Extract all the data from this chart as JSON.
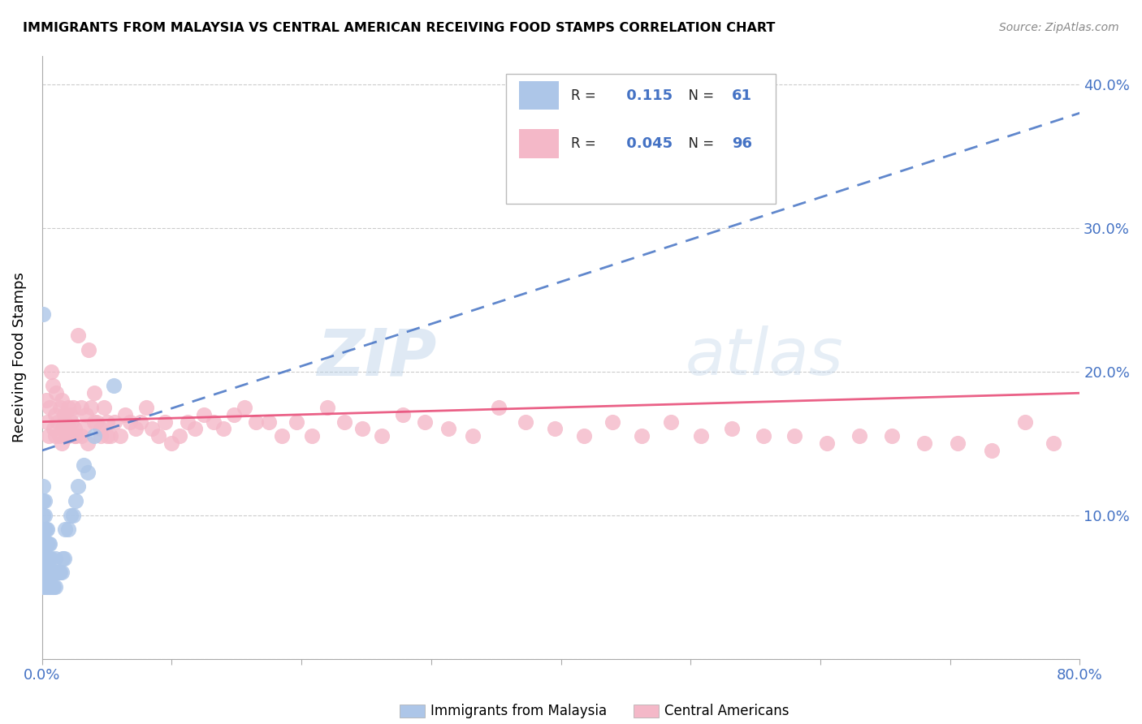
{
  "title": "IMMIGRANTS FROM MALAYSIA VS CENTRAL AMERICAN RECEIVING FOOD STAMPS CORRELATION CHART",
  "source": "Source: ZipAtlas.com",
  "ylabel": "Receiving Food Stamps",
  "xlim": [
    0.0,
    0.8
  ],
  "ylim": [
    0.0,
    0.42
  ],
  "r_malaysia": 0.115,
  "n_malaysia": 61,
  "r_central": 0.045,
  "n_central": 96,
  "legend_label_1": "Immigrants from Malaysia",
  "legend_label_2": "Central Americans",
  "color_malaysia": "#adc6e8",
  "color_central": "#f4b8c8",
  "line_color_malaysia": "#4472c4",
  "line_color_central": "#e8507a",
  "watermark_zip": "ZIP",
  "watermark_atlas": "atlas",
  "malaysia_x": [
    0.001,
    0.001,
    0.001,
    0.001,
    0.001,
    0.001,
    0.001,
    0.001,
    0.002,
    0.002,
    0.002,
    0.002,
    0.002,
    0.002,
    0.002,
    0.003,
    0.003,
    0.003,
    0.003,
    0.003,
    0.004,
    0.004,
    0.004,
    0.004,
    0.004,
    0.005,
    0.005,
    0.005,
    0.005,
    0.006,
    0.006,
    0.006,
    0.006,
    0.007,
    0.007,
    0.007,
    0.008,
    0.008,
    0.009,
    0.009,
    0.01,
    0.01,
    0.01,
    0.011,
    0.012,
    0.013,
    0.014,
    0.015,
    0.016,
    0.017,
    0.018,
    0.02,
    0.022,
    0.024,
    0.026,
    0.028,
    0.032,
    0.035,
    0.04,
    0.055,
    0.001
  ],
  "malaysia_y": [
    0.05,
    0.06,
    0.07,
    0.08,
    0.09,
    0.1,
    0.11,
    0.12,
    0.05,
    0.06,
    0.07,
    0.08,
    0.09,
    0.1,
    0.11,
    0.05,
    0.06,
    0.07,
    0.08,
    0.09,
    0.05,
    0.06,
    0.07,
    0.08,
    0.09,
    0.05,
    0.06,
    0.07,
    0.08,
    0.05,
    0.06,
    0.07,
    0.08,
    0.05,
    0.06,
    0.07,
    0.05,
    0.06,
    0.05,
    0.06,
    0.05,
    0.06,
    0.07,
    0.06,
    0.06,
    0.06,
    0.06,
    0.06,
    0.07,
    0.07,
    0.09,
    0.09,
    0.1,
    0.1,
    0.11,
    0.12,
    0.135,
    0.13,
    0.155,
    0.19,
    0.24
  ],
  "central_x": [
    0.003,
    0.004,
    0.005,
    0.006,
    0.007,
    0.008,
    0.009,
    0.01,
    0.011,
    0.012,
    0.013,
    0.014,
    0.015,
    0.016,
    0.017,
    0.018,
    0.019,
    0.02,
    0.021,
    0.022,
    0.023,
    0.024,
    0.025,
    0.026,
    0.028,
    0.03,
    0.032,
    0.034,
    0.036,
    0.038,
    0.04,
    0.042,
    0.045,
    0.048,
    0.05,
    0.053,
    0.056,
    0.06,
    0.064,
    0.068,
    0.072,
    0.076,
    0.08,
    0.085,
    0.09,
    0.095,
    0.1,
    0.106,
    0.112,
    0.118,
    0.125,
    0.132,
    0.14,
    0.148,
    0.156,
    0.165,
    0.175,
    0.185,
    0.196,
    0.208,
    0.22,
    0.233,
    0.247,
    0.262,
    0.278,
    0.295,
    0.313,
    0.332,
    0.352,
    0.373,
    0.395,
    0.418,
    0.44,
    0.462,
    0.485,
    0.508,
    0.532,
    0.556,
    0.58,
    0.605,
    0.63,
    0.655,
    0.68,
    0.706,
    0.732,
    0.758,
    0.78,
    0.01,
    0.015,
    0.02,
    0.025,
    0.03,
    0.035,
    0.04,
    0.045,
    0.05
  ],
  "central_y": [
    0.18,
    0.165,
    0.155,
    0.175,
    0.2,
    0.19,
    0.16,
    0.17,
    0.185,
    0.165,
    0.155,
    0.175,
    0.18,
    0.16,
    0.17,
    0.165,
    0.155,
    0.175,
    0.16,
    0.17,
    0.165,
    0.175,
    0.16,
    0.155,
    0.225,
    0.175,
    0.16,
    0.17,
    0.215,
    0.175,
    0.185,
    0.165,
    0.16,
    0.175,
    0.165,
    0.155,
    0.165,
    0.155,
    0.17,
    0.165,
    0.16,
    0.165,
    0.175,
    0.16,
    0.155,
    0.165,
    0.15,
    0.155,
    0.165,
    0.16,
    0.17,
    0.165,
    0.16,
    0.17,
    0.175,
    0.165,
    0.165,
    0.155,
    0.165,
    0.155,
    0.175,
    0.165,
    0.16,
    0.155,
    0.17,
    0.165,
    0.16,
    0.155,
    0.175,
    0.165,
    0.16,
    0.155,
    0.165,
    0.155,
    0.165,
    0.155,
    0.16,
    0.155,
    0.155,
    0.15,
    0.155,
    0.155,
    0.15,
    0.15,
    0.145,
    0.165,
    0.15,
    0.155,
    0.15,
    0.155,
    0.155,
    0.155,
    0.15,
    0.165,
    0.155,
    0.155
  ],
  "malaysia_line": [
    0.0,
    0.8,
    0.145,
    0.38
  ],
  "central_line": [
    0.0,
    0.8,
    0.165,
    0.185
  ]
}
